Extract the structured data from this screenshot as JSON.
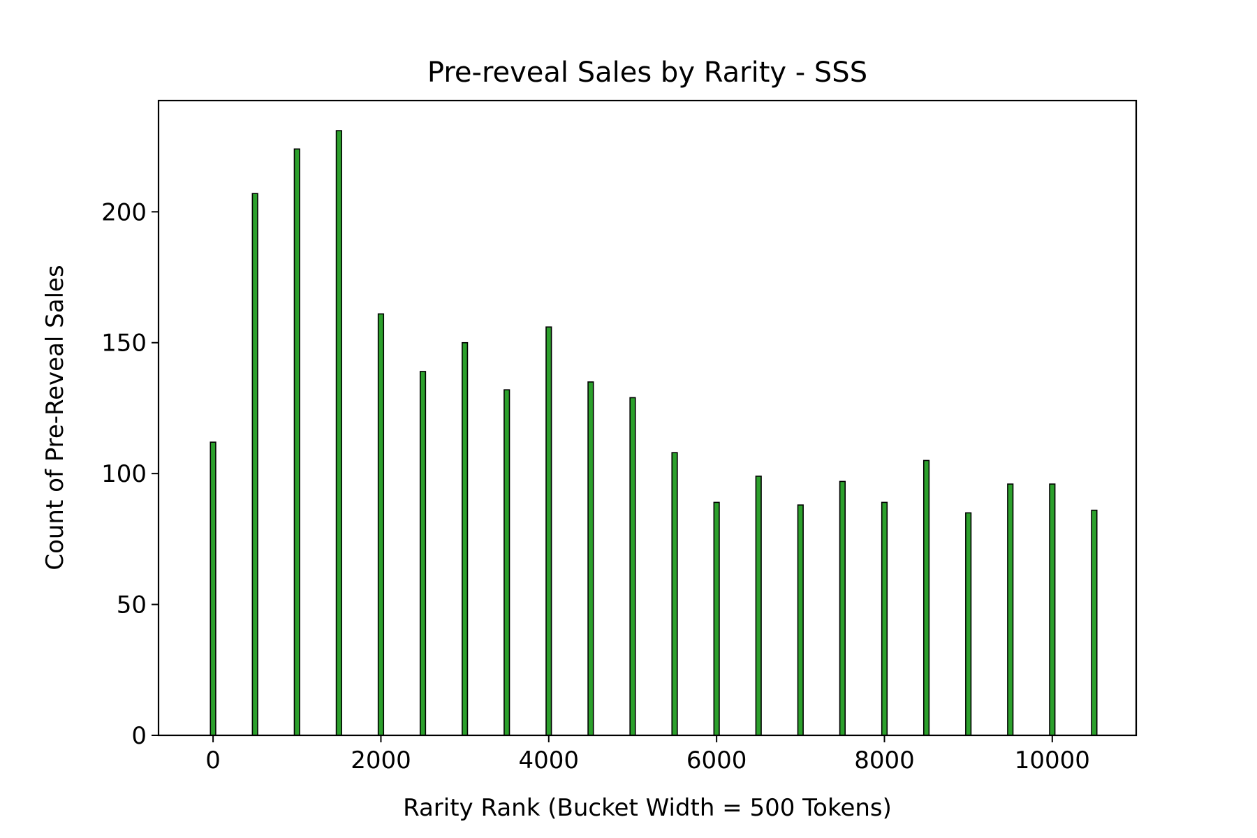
{
  "chart_data": {
    "type": "bar",
    "title": "Pre-reveal Sales by Rarity - SSS",
    "xlabel": "Rarity Rank (Bucket Width = 500 Tokens)",
    "ylabel": "Count of Pre-Reveal Sales",
    "x": [
      0,
      500,
      1000,
      1500,
      2000,
      2500,
      3000,
      3500,
      4000,
      4500,
      5000,
      5500,
      6000,
      6500,
      7000,
      7500,
      8000,
      8500,
      9000,
      9500,
      10000,
      10500
    ],
    "values": [
      112,
      207,
      224,
      231,
      161,
      139,
      150,
      132,
      156,
      135,
      129,
      108,
      89,
      99,
      88,
      97,
      89,
      105,
      85,
      96,
      96,
      86
    ],
    "xlim": [
      -650,
      11000
    ],
    "ylim": [
      0,
      242.5
    ],
    "xticks": [
      0,
      2000,
      4000,
      6000,
      8000,
      10000
    ],
    "xtick_labels": [
      "0",
      "2000",
      "4000",
      "6000",
      "8000",
      "10000"
    ],
    "yticks": [
      0,
      50,
      100,
      150,
      200
    ],
    "ytick_labels": [
      "0",
      "50",
      "100",
      "150",
      "200"
    ],
    "bar_color": "#2ca02c",
    "edge_color": "#000000",
    "grid": false,
    "legend": "none"
  }
}
